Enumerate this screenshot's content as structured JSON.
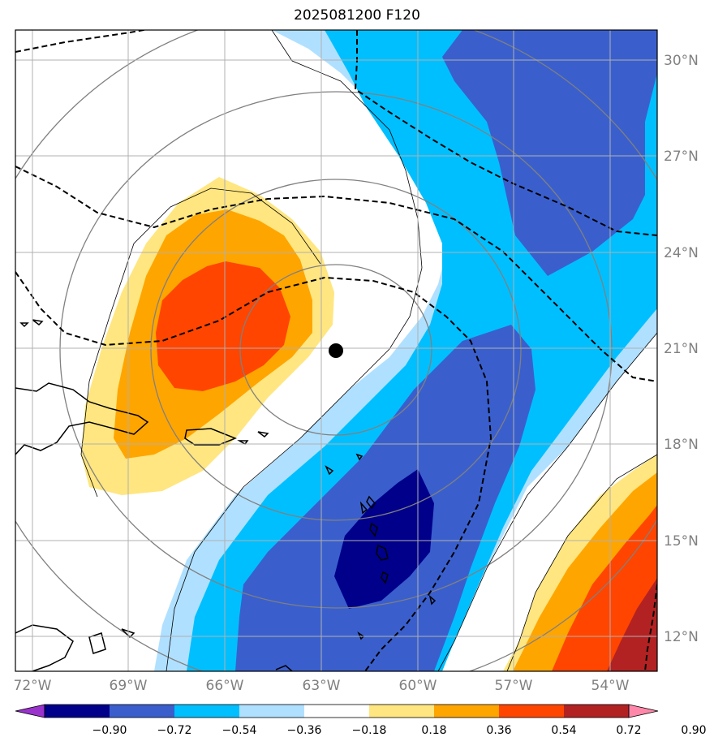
{
  "title": "2025081200 F120",
  "map": {
    "lon_range": [
      -73,
      -52
    ],
    "lat_range": [
      11,
      31
    ],
    "lat_labels": [
      "30°N",
      "27°N",
      "24°N",
      "21°N",
      "18°N",
      "15°N",
      "12°N"
    ],
    "lon_labels": [
      "72°W",
      "69°W",
      "66°W",
      "63°W",
      "60°W",
      "57°W",
      "54°W"
    ],
    "storm_center": {
      "lon": -62.5,
      "lat": 21.0
    },
    "grid": true
  },
  "colorbar": {
    "labels": [
      "−0.90",
      "−0.72",
      "−0.54",
      "−0.36",
      "−0.18",
      "0.18",
      "0.36",
      "0.54",
      "0.72",
      "0.90"
    ],
    "colors": [
      "#9933cc",
      "#00008b",
      "#3a5fcd",
      "#00bfff",
      "#b0e0ff",
      "#ffffff",
      "#ffe680",
      "#ffa500",
      "#ff4500",
      "#b22222",
      "#ff88aa"
    ],
    "extend": "both"
  }
}
